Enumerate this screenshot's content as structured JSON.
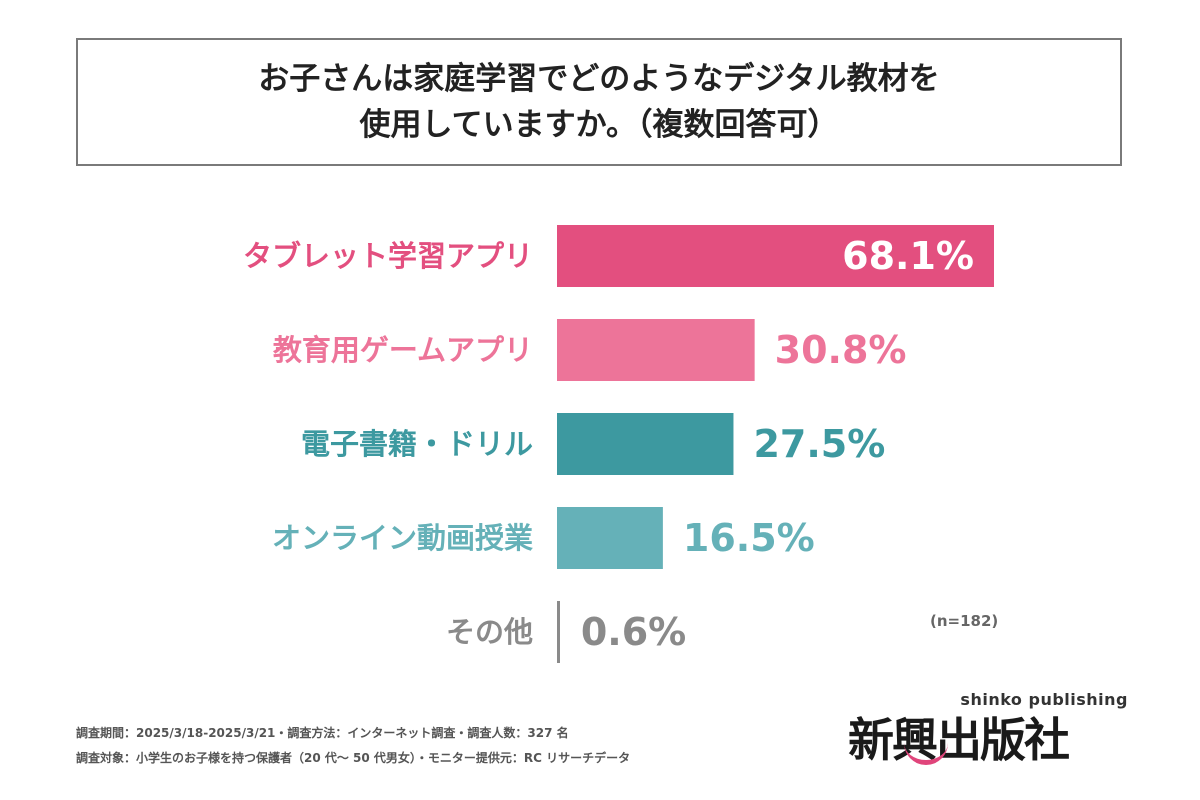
{
  "title": {
    "line1": "お子さんは家庭学習でどのようなデジタル教材を",
    "line2": "使用していますか。（複数回答可）"
  },
  "note": "(n=182)",
  "footer": {
    "line1": "調査期間：2025/3/18-2025/3/21・調査方法：インターネット調査・調査人数：327 名",
    "line2": "調査対象：小学生のお子様を持つ保護者（20 代～ 50 代男女）・モニター提供元：RC リサーチデータ"
  },
  "logo": {
    "en": "shinko publishing",
    "jp": "新興出版社"
  },
  "colors": {
    "pink_dark": "#e34f7f",
    "pink_light": "#ed7499",
    "teal_dark": "#3d99a0",
    "teal_light": "#65b1b8",
    "gray": "#8a8a8a"
  },
  "chart_data": {
    "type": "bar",
    "orientation": "horizontal",
    "categories": [
      "タブレット学習アプリ",
      "教育用ゲームアプリ",
      "電子書籍・ドリル",
      "オンライン動画授業",
      "その他"
    ],
    "values": [
      68.1,
      30.8,
      27.5,
      16.5,
      0.6
    ],
    "value_labels": [
      "68.1%",
      "30.8%",
      "27.5%",
      "16.5%",
      "0.6%"
    ],
    "bar_colors": [
      "#e34f7f",
      "#ed7499",
      "#3d99a0",
      "#65b1b8",
      "#8a8a8a"
    ],
    "label_colors": [
      "#e34f7f",
      "#ed7499",
      "#3d99a0",
      "#65b1b8",
      "#8a8a8a"
    ],
    "value_colors": [
      "#ffffff",
      "#ed7499",
      "#3d99a0",
      "#65b1b8",
      "#8a8a8a"
    ],
    "xlim": [
      0,
      68.1
    ],
    "grid": false,
    "legend": "none"
  }
}
